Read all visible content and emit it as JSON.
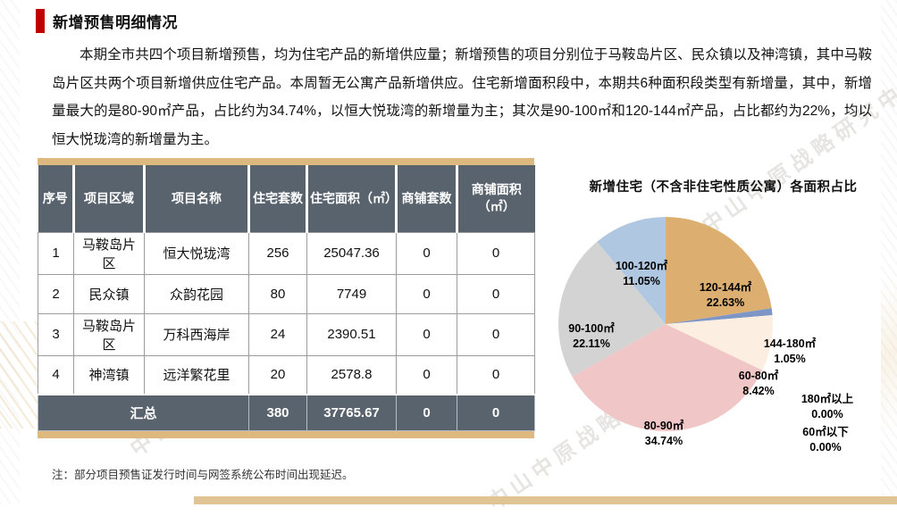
{
  "page": {
    "title": "新增预售明细情况",
    "paragraph": "本期全市共四个项目新增预售，均为住宅产品的新增供应量；新增预售的项目分别位于马鞍岛片区、民众镇以及神湾镇，其中马鞍岛片区共两个项目新增供应住宅产品。本周暂无公寓产品新增供应。住宅新增面积段中，本期共6种面积段类型有新增量，其中，新增量最大的是80-90㎡产品，占比约为34.74%，以恒大悦珑湾的新增量为主；其次是90-100㎡和120-144㎡产品，占比都约为22%，均以恒大悦珑湾的新增量为主。",
    "note": "注：部分项目预售证发行时间与网签系统公布时间出现延迟。",
    "watermark_text": "中山中原战略研究中心",
    "accent_red": "#C00000",
    "accent_gold": "#DDB97F",
    "table_header_bg": "#59636D"
  },
  "table": {
    "headers": [
      "序号",
      "项目区域",
      "项目名称",
      "住宅套数",
      "住宅面积（㎡）",
      "商铺套数",
      "商铺面积（㎡）"
    ],
    "rows": [
      [
        "1",
        "马鞍岛片区",
        "恒大悦珑湾",
        "256",
        "25047.36",
        "0",
        "0"
      ],
      [
        "2",
        "民众镇",
        "众韵花园",
        "80",
        "7749",
        "0",
        "0"
      ],
      [
        "3",
        "马鞍岛片区",
        "万科西海岸",
        "24",
        "2390.51",
        "0",
        "0"
      ],
      [
        "4",
        "神湾镇",
        "远洋繁花里",
        "20",
        "2578.8",
        "0",
        "0"
      ]
    ],
    "summary": {
      "label": "汇总",
      "values": [
        "380",
        "37765.67",
        "0",
        "0"
      ]
    }
  },
  "chart_data": {
    "type": "pie",
    "title": "新增住宅（不含非住宅性质公寓）各面积占比",
    "start_angle_deg": 0,
    "direction": "clockwise",
    "legend": "direct-labels",
    "slices": [
      {
        "label": "120-144㎡",
        "value": 22.63,
        "pct_text": "22.63%",
        "color": "#DCAF70"
      },
      {
        "label": "144-180㎡",
        "value": 1.05,
        "pct_text": "1.05%",
        "color": "#7D96C6"
      },
      {
        "label": "60-80㎡",
        "value": 8.42,
        "pct_text": "8.42%",
        "color": "#FCEFE2"
      },
      {
        "label": "80-90㎡",
        "value": 34.74,
        "pct_text": "34.74%",
        "color": "#F0C6C6"
      },
      {
        "label": "90-100㎡",
        "value": 22.11,
        "pct_text": "22.11%",
        "color": "#D3D3D3"
      },
      {
        "label": "100-120㎡",
        "value": 11.05,
        "pct_text": "11.05%",
        "color": "#AFC7E0"
      },
      {
        "label": "180㎡以上",
        "value": 0.0,
        "pct_text": "0.00%",
        "color": null
      },
      {
        "label": "60㎡以下",
        "value": 0.0,
        "pct_text": "0.00%",
        "color": null
      }
    ]
  }
}
